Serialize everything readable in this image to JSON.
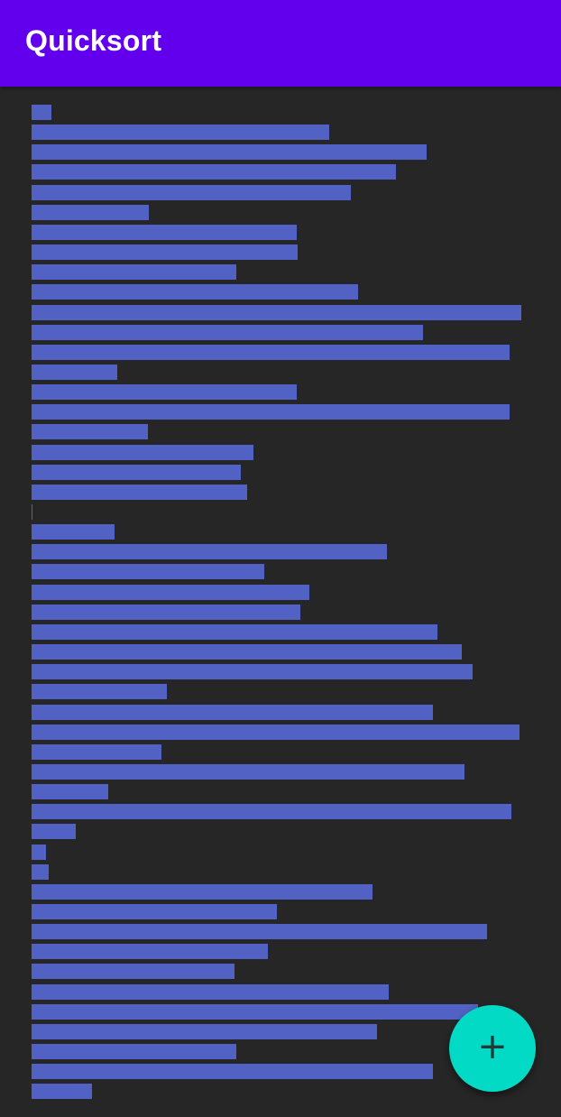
{
  "app_bar": {
    "title": "Quicksort"
  },
  "colors": {
    "app_bar": "#6200ee",
    "background": "#262626",
    "bar": "#5162c4",
    "fab": "#03dac5",
    "fab_icon": "#1f3d38"
  },
  "fab": {
    "icon": "add-icon",
    "glyph": "+"
  },
  "chart_data": {
    "type": "bar",
    "orientation": "horizontal",
    "values": [
      22,
      330,
      438,
      404,
      354,
      130,
      294,
      295,
      227,
      362,
      543,
      434,
      530,
      95,
      294,
      530,
      129,
      246,
      232,
      239,
      1,
      92,
      394,
      258,
      308,
      298,
      450,
      477,
      489,
      150,
      445,
      541,
      144,
      480,
      85,
      532,
      49,
      16,
      19,
      378,
      272,
      505,
      262,
      225,
      396,
      495,
      383,
      227,
      445,
      67
    ],
    "max": 550
  }
}
